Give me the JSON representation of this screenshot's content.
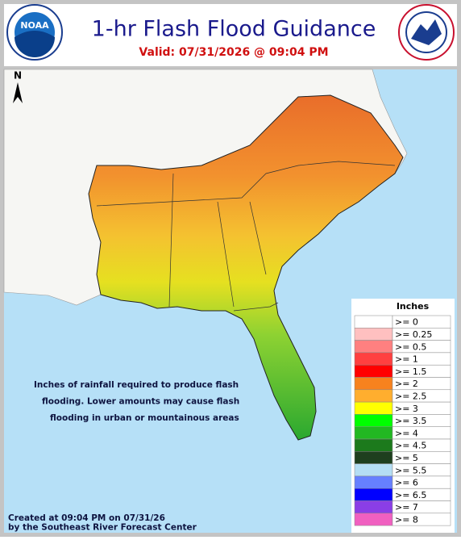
{
  "header": {
    "title": "1-hr Flash Flood Guidance",
    "valid": "Valid:  07/31/2026 @ 09:04 PM",
    "left_logo": "NOAA"
  },
  "map": {
    "north_label": "N",
    "note": [
      "Inches of rainfall required to produce flash",
      "flooding. Lower amounts may cause flash",
      "flooding in urban or mountainous areas"
    ]
  },
  "legend": {
    "title": "Inches",
    "entries": [
      {
        "label": ">= 0",
        "color": "#ffffff"
      },
      {
        "label": ">= 0.25",
        "color": "#ffc0c0"
      },
      {
        "label": ">= 0.5",
        "color": "#ff8080"
      },
      {
        "label": ">= 1",
        "color": "#ff4040"
      },
      {
        "label": ">= 1.5",
        "color": "#ff0000"
      },
      {
        "label": ">= 2",
        "color": "#f7821e"
      },
      {
        "label": ">= 2.5",
        "color": "#ffae2e"
      },
      {
        "label": ">= 3",
        "color": "#ffff00"
      },
      {
        "label": ">= 3.5",
        "color": "#00ff00"
      },
      {
        "label": ">= 4",
        "color": "#22b822"
      },
      {
        "label": ">= 4.5",
        "color": "#1c7a1c"
      },
      {
        "label": ">= 5",
        "color": "#1e3f1e"
      },
      {
        "label": ">= 5.5",
        "color": "#b4def4"
      },
      {
        "label": ">= 6",
        "color": "#6680ff"
      },
      {
        "label": ">= 6.5",
        "color": "#0000ff"
      },
      {
        "label": ">= 7",
        "color": "#8a3ee6"
      },
      {
        "label": ">= 8",
        "color": "#f060c0"
      }
    ]
  },
  "footer": [
    "Created at 09:04 PM on 07/31/26",
    "by the Southeast River Forecast Center"
  ]
}
